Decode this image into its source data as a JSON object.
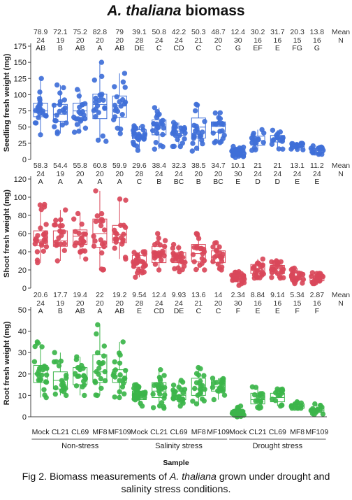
{
  "title": {
    "italic": "A. thaliana",
    "rest": " biomass"
  },
  "chart_data": {
    "type": "scatter",
    "x_title": "Sample",
    "categories": [
      "Mock",
      "CL21",
      "CL69",
      "MF8",
      "MF109",
      "Mock",
      "CL21",
      "CL69",
      "MF8",
      "MF109",
      "Mock",
      "CL21",
      "CL69",
      "MF8",
      "MF109"
    ],
    "groups": [
      {
        "label": "Non-stress",
        "members": [
          0,
          1,
          2,
          3,
          4
        ]
      },
      {
        "label": "Salinity stress",
        "members": [
          5,
          6,
          7,
          8,
          9
        ]
      },
      {
        "label": "Drought stress",
        "members": [
          10,
          11,
          12,
          13,
          14
        ]
      }
    ],
    "header_labels": {
      "mean": "Mean",
      "n": "N"
    },
    "panels": [
      {
        "ylabel": "Seedling fresh weight (mg)",
        "color": "#3f6fd8",
        "ylim": [
          0,
          175
        ],
        "yticks": [
          0,
          25,
          50,
          75,
          100,
          125,
          150,
          175
        ],
        "means": [
          "78.9",
          "72.1",
          "75.2",
          "82.8",
          "79",
          "39.1",
          "50.8",
          "42.2",
          "50.3",
          "48.7",
          "12.4",
          "30.2",
          "31.7",
          "20.3",
          "13.8"
        ],
        "n": [
          "24",
          "19",
          "20",
          "20",
          "20",
          "28",
          "24",
          "24",
          "21",
          "20",
          "30",
          "16",
          "16",
          "15",
          "16"
        ],
        "letters": [
          "AB",
          "B",
          "AB",
          "A",
          "AB",
          "DE",
          "C",
          "CD",
          "C",
          "C",
          "G",
          "EF",
          "E",
          "FG",
          "G"
        ],
        "box": [
          [
            66,
            75,
            87
          ],
          [
            59,
            70,
            85
          ],
          [
            61,
            75,
            87
          ],
          [
            63,
            85,
            101
          ],
          [
            65,
            83,
            98
          ],
          [
            32,
            39,
            46
          ],
          [
            38,
            53,
            61
          ],
          [
            37,
            44,
            50
          ],
          [
            33,
            50,
            64
          ],
          [
            42,
            51,
            58
          ],
          [
            8,
            12,
            16
          ],
          [
            22,
            29,
            36
          ],
          [
            27,
            32,
            37
          ],
          [
            18,
            20,
            23
          ],
          [
            10,
            14,
            17
          ]
        ],
        "range": [
          [
            38,
            125
          ],
          [
            40,
            115
          ],
          [
            42,
            108
          ],
          [
            28,
            150
          ],
          [
            40,
            133
          ],
          [
            14,
            52
          ],
          [
            16,
            80
          ],
          [
            20,
            57
          ],
          [
            13,
            85
          ],
          [
            26,
            72
          ],
          [
            3,
            20
          ],
          [
            14,
            46
          ],
          [
            16,
            45
          ],
          [
            15,
            25
          ],
          [
            8,
            21
          ]
        ]
      },
      {
        "ylabel": "Shoot fresh weight (mg)",
        "color": "#d9485a",
        "ylim": [
          0,
          120
        ],
        "yticks": [
          0,
          20,
          40,
          60,
          80,
          100,
          120
        ],
        "means": [
          "58.3",
          "54.4",
          "55.8",
          "60.8",
          "59.9",
          "29.6",
          "38.4",
          "32.3",
          "38.5",
          "34.7",
          "10.1",
          "21",
          "21",
          "13.1",
          "11.2"
        ],
        "n": [
          "24",
          "19",
          "20",
          "20",
          "20",
          "28",
          "24",
          "24",
          "20",
          "20",
          "30",
          "24",
          "24",
          "24",
          "24"
        ],
        "letters": [
          "A",
          "A",
          "A",
          "A",
          "A",
          "C",
          "B",
          "BC",
          "B",
          "BC",
          "E",
          "D",
          "D",
          "E",
          "E"
        ],
        "box": [
          [
            47,
            53,
            63
          ],
          [
            46,
            52,
            63
          ],
          [
            48,
            57,
            64
          ],
          [
            45,
            60,
            76
          ],
          [
            50,
            59,
            69
          ],
          [
            23,
            29,
            36
          ],
          [
            28,
            37,
            46
          ],
          [
            28,
            34,
            39
          ],
          [
            29,
            38,
            48
          ],
          [
            28,
            34,
            41
          ],
          [
            7,
            11,
            14
          ],
          [
            16,
            21,
            26
          ],
          [
            16,
            21,
            25
          ],
          [
            9,
            13,
            17
          ],
          [
            8,
            11,
            14
          ]
        ],
        "range": [
          [
            28,
            92
          ],
          [
            30,
            86
          ],
          [
            32,
            82
          ],
          [
            20,
            107
          ],
          [
            32,
            98
          ],
          [
            12,
            40
          ],
          [
            20,
            60
          ],
          [
            18,
            48
          ],
          [
            20,
            60
          ],
          [
            20,
            50
          ],
          [
            3,
            18
          ],
          [
            11,
            32
          ],
          [
            11,
            30
          ],
          [
            5,
            22
          ],
          [
            5,
            17
          ]
        ]
      },
      {
        "ylabel": "Root fresh weight (mg)",
        "color": "#3cb54a",
        "ylim": [
          0,
          50
        ],
        "yticks": [
          0,
          10,
          20,
          30,
          40,
          50
        ],
        "means": [
          "20.6",
          "17.7",
          "19.4",
          "22",
          "19.2",
          "9.54",
          "12.4",
          "9.93",
          "13.6",
          "14",
          "2.34",
          "8.84",
          "9.14",
          "5.34",
          "2.87"
        ],
        "n": [
          "24",
          "19",
          "20",
          "20",
          "20",
          "28",
          "24",
          "24",
          "21",
          "20",
          "30",
          "16",
          "16",
          "15",
          "16"
        ],
        "letters": [
          "A",
          "B",
          "AB",
          "A",
          "AB",
          "E",
          "CD",
          "DE",
          "C",
          "C",
          "F",
          "E",
          "E",
          "F",
          "F"
        ],
        "box": [
          [
            16,
            20,
            24
          ],
          [
            13,
            17,
            21
          ],
          [
            15,
            19,
            23
          ],
          [
            16,
            21,
            29
          ],
          [
            16,
            19,
            22
          ],
          [
            8,
            10,
            12
          ],
          [
            9,
            12,
            16
          ],
          [
            8,
            10,
            12
          ],
          [
            10,
            13,
            18
          ],
          [
            12,
            14,
            17
          ],
          [
            1,
            2,
            3
          ],
          [
            6,
            8,
            11
          ],
          [
            7,
            9,
            11
          ],
          [
            4,
            5,
            6
          ],
          [
            2,
            3,
            4
          ]
        ],
        "range": [
          [
            9,
            35
          ],
          [
            10,
            30
          ],
          [
            10,
            28
          ],
          [
            10,
            43
          ],
          [
            9,
            35
          ],
          [
            5,
            15
          ],
          [
            4,
            22
          ],
          [
            5,
            17
          ],
          [
            6,
            23
          ],
          [
            8,
            18
          ],
          [
            0,
            5
          ],
          [
            4,
            14
          ],
          [
            5,
            13
          ],
          [
            4,
            7
          ],
          [
            1,
            6
          ]
        ]
      }
    ]
  },
  "caption": {
    "prefix": "Fig 2. Biomass measurements of ",
    "species": "A. thaliana",
    "suffix": " grown under drought and salinity stress conditions."
  }
}
